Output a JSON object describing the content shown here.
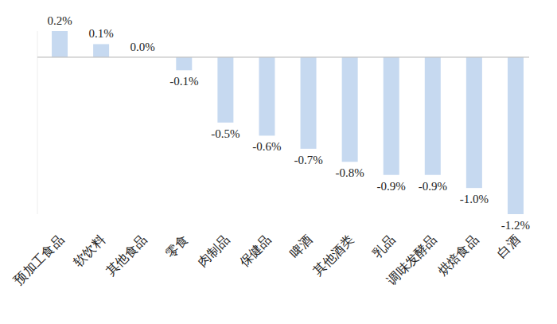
{
  "chart_data": {
    "type": "bar",
    "categories": [
      "预加工食品",
      "软饮料",
      "其他食品",
      "零食",
      "肉制品",
      "保健品",
      "啤酒",
      "其他酒类",
      "乳品",
      "调味发酵品",
      "烘焙食品",
      "白酒"
    ],
    "values": [
      0.2,
      0.1,
      0.0,
      -0.1,
      -0.5,
      -0.6,
      -0.7,
      -0.8,
      -0.9,
      -0.9,
      -1.0,
      -1.2
    ],
    "value_labels": [
      "0.2%",
      "0.1%",
      "0.0%",
      "-0.1%",
      "-0.5%",
      "-0.6%",
      "-0.7%",
      "-0.8%",
      "-0.9%",
      "-0.9%",
      "-1.0%",
      "-1.2%"
    ],
    "color": "#c6d9f0",
    "ylim": [
      -1.2,
      0.2
    ],
    "yticks": [
      0
    ],
    "grid": false,
    "data_labels": true,
    "tick_labels": "x"
  }
}
